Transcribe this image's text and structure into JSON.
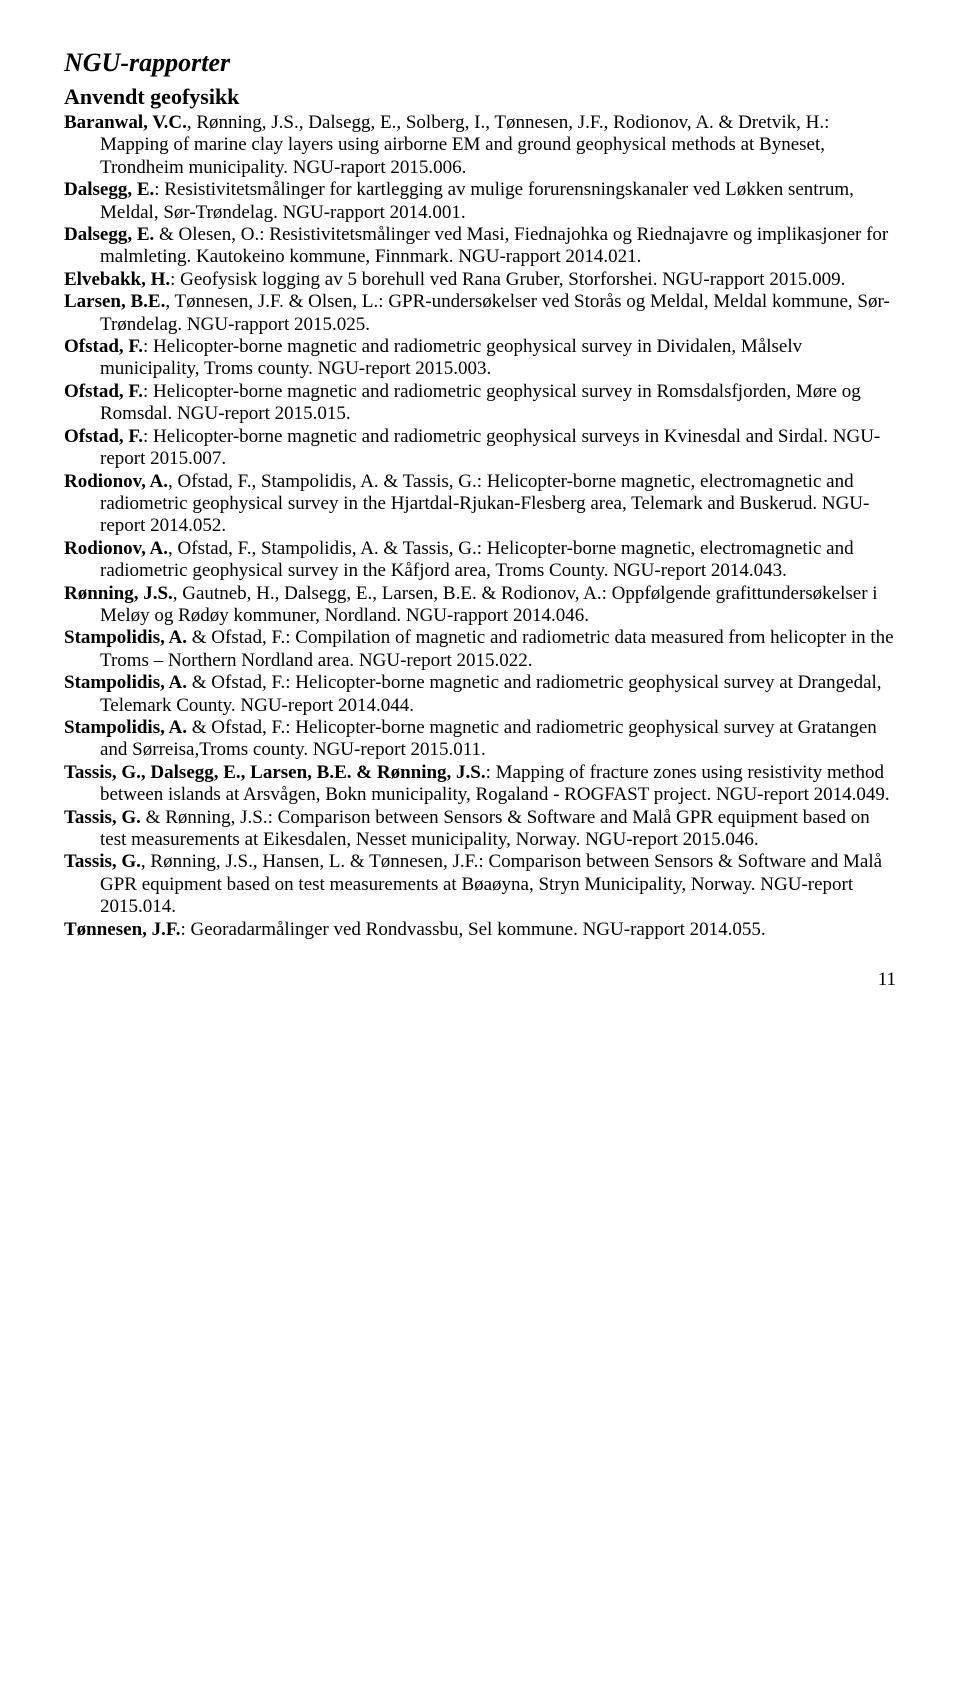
{
  "heading1": "NGU-rapporter",
  "heading2": "Anvendt geofysikk",
  "entries": [
    {
      "a": "Baranwal, V.C.",
      "r": ", Rønning, J.S., Dalsegg, E., Solberg, I., Tønnesen, J.F., Rodionov, A. & Dretvik, H.: Mapping of marine clay layers using airborne EM and ground geophysical methods at Byneset, Trondheim municipality. NGU-raport 2015.006."
    },
    {
      "a": "Dalsegg, E.",
      "r": ": Resistivitetsmålinger for kartlegging av mulige forurensningskanaler ved Løkken sentrum, Meldal, Sør-Trøndelag. NGU-rapport 2014.001."
    },
    {
      "a": "Dalsegg, E.",
      "r": " & Olesen, O.: Resistivitetsmålinger ved Masi, Fiednajohka og Riednajavre og implikasjoner for malmleting. Kautokeino kommune, Finnmark. NGU-rapport 2014.021."
    },
    {
      "a": "Elvebakk, H.",
      "r": ": Geofysisk logging av 5 borehull ved Rana Gruber, Storforshei. NGU-rapport 2015.009."
    },
    {
      "a": "Larsen, B.E.",
      "r": ", Tønnesen, J.F. & Olsen, L.: GPR-undersøkelser ved Storås og Meldal, Meldal kommune, Sør-Trøndelag. NGU-rapport 2015.025."
    },
    {
      "a": "Ofstad, F.",
      "r": ": Helicopter-borne magnetic and radiometric geophysical survey in Dividalen, Målselv municipality, Troms county. NGU-report 2015.003."
    },
    {
      "a": "Ofstad, F.",
      "r": ": Helicopter-borne magnetic and radiometric geophysical survey in Romsdalsfjorden, Møre og Romsdal. NGU-report 2015.015."
    },
    {
      "a": "Ofstad, F.",
      "r": ": Helicopter-borne magnetic and radiometric geophysical surveys in Kvinesdal and Sirdal. NGU-report 2015.007."
    },
    {
      "a": "Rodionov, A.",
      "r": ", Ofstad, F., Stampolidis, A. & Tassis, G.: Helicopter-borne magnetic, electromagnetic and radiometric geophysical survey in the Hjartdal-Rjukan-Flesberg area, Telemark and Buskerud. NGU-report 2014.052."
    },
    {
      "a": "Rodionov, A.",
      "r": ", Ofstad, F., Stampolidis, A. & Tassis, G.: Helicopter-borne magnetic, electromagnetic and radiometric geophysical survey in the Kåfjord area, Troms County. NGU-report 2014.043."
    },
    {
      "a": "Rønning, J.S.",
      "r": ", Gautneb, H., Dalsegg, E., Larsen, B.E. & Rodionov, A.: Oppfølgende grafittundersøkelser i Meløy og Rødøy kommuner, Nordland. NGU-rapport 2014.046."
    },
    {
      "a": "Stampolidis, A.",
      "r": " & Ofstad, F.: Compilation of magnetic and radiometric data measured from helicopter in the Troms – Northern Nordland area. NGU-report 2015.022."
    },
    {
      "a": "Stampolidis, A.",
      "r": " & Ofstad, F.: Helicopter-borne magnetic and radiometric geophysical survey at Drangedal, Telemark County. NGU-report 2014.044."
    },
    {
      "a": "Stampolidis, A.",
      "r": " & Ofstad, F.: Helicopter-borne magnetic and radiometric geophysical survey at Gratangen and Sørreisa,Troms county. NGU-report 2015.011."
    },
    {
      "a": "Tassis, G., Dalsegg, E., Larsen, B.E. & Rønning, J.S.",
      "r": ": Mapping of fracture zones using resistivity method between islands at Arsvågen, Bokn municipality, Rogaland - ROGFAST project. NGU-report 2014.049."
    },
    {
      "a": "Tassis, G.",
      "r": " & Rønning, J.S.: Comparison between Sensors & Software and Malå GPR equipment based on test measurements at Eikesdalen, Nesset municipality, Norway. NGU-report 2015.046."
    },
    {
      "a": "Tassis, G.",
      "r": ", Rønning, J.S., Hansen, L. & Tønnesen, J.F.: Comparison between Sensors & Software and Malå GPR equipment based on test measurements at Bøaøyna, Stryn Municipality, Norway. NGU-report 2015.014."
    },
    {
      "a": "Tønnesen, J.F.",
      "r": ": Georadarmålinger ved Rondvassbu, Sel kommune. NGU-rapport 2014.055."
    }
  ],
  "pageNumber": "11"
}
